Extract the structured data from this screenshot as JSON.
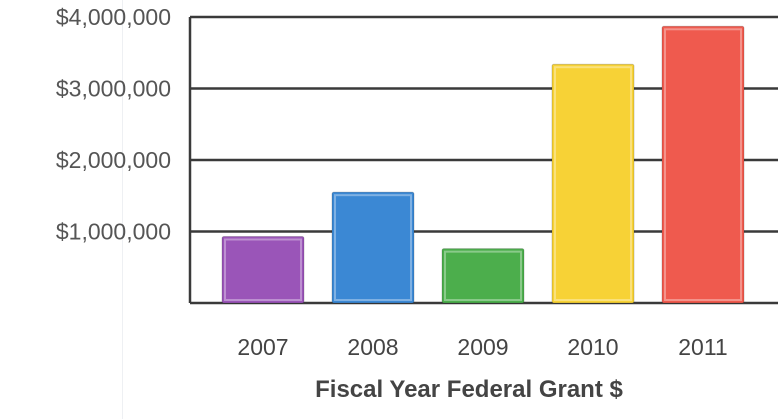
{
  "chart_data": {
    "type": "bar",
    "title": "",
    "xlabel": "Fiscal Year Federal Grant $",
    "ylabel": "",
    "categories": [
      "2007",
      "2008",
      "2009",
      "2010",
      "2011"
    ],
    "values": [
      930000,
      1550000,
      760000,
      3340000,
      3870000
    ],
    "ylim": [
      0,
      4000000
    ],
    "yticks": [
      1000000,
      2000000,
      3000000,
      4000000
    ],
    "ytick_labels": [
      "$1,000,000",
      "$2,000,000",
      "$3,000,000",
      "$4,000,000"
    ],
    "bar_colors": [
      "#9a55b8",
      "#3b88d4",
      "#4cae4c",
      "#f7d236",
      "#ef5a4e"
    ],
    "grid": true,
    "legend": "none"
  }
}
